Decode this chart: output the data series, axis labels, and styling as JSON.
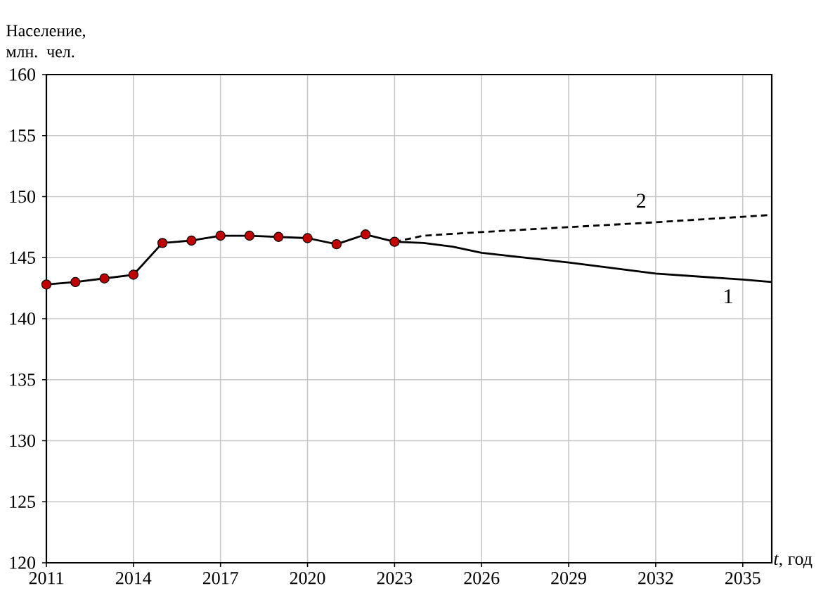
{
  "chart_data": {
    "type": "line",
    "xlabel": "*t*, год",
    "ylabel": "Население, млн. чел.",
    "xlim": [
      2011,
      2036
    ],
    "ylim": [
      120,
      160
    ],
    "xticks": [
      2011,
      2014,
      2017,
      2020,
      2023,
      2026,
      2029,
      2032,
      2035
    ],
    "yticks": [
      120,
      125,
      130,
      135,
      140,
      145,
      150,
      155,
      160
    ],
    "grid": true,
    "series": [
      {
        "color": "#000000",
        "marker": "circle",
        "line_style": "solid",
        "x": [
          2011,
          2012,
          2013,
          2014,
          2015,
          2016,
          2017,
          2018,
          2019,
          2020,
          2021,
          2022,
          2023
        ],
        "values": [
          142.8,
          143.0,
          143.3,
          143.6,
          146.2,
          146.4,
          146.8,
          146.8,
          146.7,
          146.6,
          146.1,
          146.9,
          146.3
        ]
      },
      {
        "name": "1",
        "color": "#000000",
        "marker": "none",
        "line_style": "solid",
        "x": [
          2023,
          2024,
          2025,
          2026,
          2029,
          2032,
          2035,
          2036
        ],
        "values": [
          146.3,
          146.2,
          145.9,
          145.4,
          144.6,
          143.7,
          143.2,
          143.0
        ]
      },
      {
        "name": "2",
        "color": "#000000",
        "marker": "none",
        "line_style": "dashed",
        "x": [
          2023,
          2024,
          2026,
          2029,
          2032,
          2036
        ],
        "values": [
          146.3,
          146.8,
          147.1,
          147.5,
          147.9,
          148.5
        ]
      }
    ]
  }
}
